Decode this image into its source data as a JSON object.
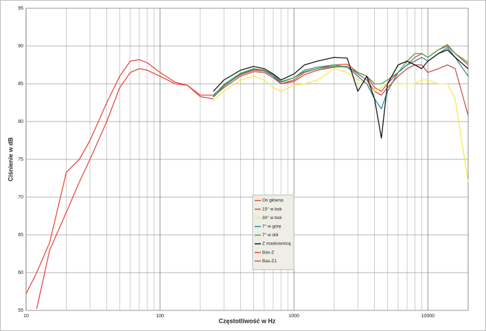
{
  "chart_data": {
    "type": "line",
    "xlabel": "Częstotliwość w Hz",
    "ylabel": "Ciśnienie w dB",
    "xscale": "log",
    "grid": true,
    "xlim": [
      10,
      20000
    ],
    "ylim": [
      55,
      95
    ],
    "xticks": [
      10,
      100,
      1000,
      10000
    ],
    "xminor_ticks": [
      20,
      30,
      40,
      50,
      60,
      70,
      80,
      90,
      200,
      300,
      400,
      500,
      600,
      700,
      800,
      900,
      2000,
      3000,
      4000,
      5000,
      6000,
      7000,
      8000,
      9000
    ],
    "yticks": [
      55,
      60,
      65,
      70,
      75,
      80,
      85,
      90,
      95
    ],
    "x": [
      10,
      12,
      15,
      20,
      25,
      30,
      40,
      50,
      60,
      70,
      80,
      100,
      130,
      160,
      200,
      250,
      300,
      400,
      500,
      600,
      700,
      800,
      1000,
      1200,
      1500,
      2000,
      2500,
      3000,
      3500,
      4000,
      4500,
      5000,
      6000,
      7000,
      8000,
      9000,
      10000,
      12000,
      14000,
      16000,
      20000
    ],
    "series": [
      {
        "name": "Oś główna",
        "color": "#e8453c",
        "values": [
          null,
          null,
          null,
          null,
          null,
          null,
          null,
          null,
          null,
          null,
          null,
          null,
          null,
          null,
          null,
          83.5,
          84.8,
          86.2,
          86.8,
          86.7,
          86,
          85,
          85.5,
          86.5,
          87,
          87.5,
          87.6,
          86.5,
          86,
          84.5,
          84,
          85,
          86.5,
          87.5,
          88.5,
          89,
          88.5,
          89.5,
          90,
          89,
          87.5
        ]
      },
      {
        "name": "15° w bok",
        "color": "#c0504d",
        "values": [
          null,
          null,
          null,
          null,
          null,
          null,
          null,
          null,
          null,
          null,
          null,
          null,
          null,
          null,
          null,
          83.3,
          84.5,
          86,
          86.6,
          86.5,
          85.8,
          85,
          85.3,
          86.2,
          86.8,
          87.2,
          87.3,
          86.3,
          85.5,
          84,
          83.5,
          84.5,
          86,
          87,
          87.5,
          87.5,
          86.5,
          87,
          87.5,
          87,
          80.8
        ]
      },
      {
        "name": "30° w bok",
        "color": "#f5e94a",
        "values": [
          null,
          null,
          null,
          null,
          null,
          null,
          null,
          null,
          null,
          null,
          null,
          null,
          null,
          null,
          null,
          82.8,
          84,
          85.5,
          86,
          85.5,
          84.5,
          84,
          84.8,
          85,
          85.5,
          87,
          86.5,
          85.5,
          85,
          84,
          84.5,
          85,
          85,
          85,
          85,
          85.5,
          85.5,
          85,
          85,
          83,
          72
        ]
      },
      {
        "name": "7° w górę",
        "color": "#31859c",
        "values": [
          null,
          null,
          null,
          null,
          null,
          null,
          null,
          null,
          null,
          null,
          null,
          null,
          null,
          null,
          null,
          83.2,
          84.7,
          86.3,
          86.9,
          86.8,
          86,
          85.2,
          85.8,
          86.8,
          87.2,
          87.5,
          87.2,
          86,
          85,
          83,
          81.7,
          84,
          86.5,
          87.5,
          88,
          88.5,
          88,
          89,
          89.8,
          88.5,
          86
        ]
      },
      {
        "name": "7° w dół",
        "color": "#3aa54a",
        "values": [
          null,
          null,
          null,
          null,
          null,
          null,
          null,
          null,
          null,
          null,
          null,
          null,
          null,
          null,
          null,
          83.4,
          84.9,
          86.4,
          87,
          86.8,
          86.2,
          85.3,
          85.8,
          86.6,
          87,
          87.3,
          87.2,
          86.5,
          86,
          85,
          85,
          85.5,
          86.5,
          88,
          89,
          89,
          88.5,
          89.5,
          90.2,
          89,
          87.8
        ]
      },
      {
        "name": "Z maskownicą",
        "color": "#111111",
        "values": [
          null,
          null,
          null,
          null,
          null,
          null,
          null,
          null,
          null,
          null,
          null,
          null,
          null,
          null,
          null,
          84,
          85.5,
          86.8,
          87.3,
          87,
          86.3,
          85.5,
          86.3,
          87.5,
          88,
          88.5,
          88.4,
          84,
          86,
          83,
          77.8,
          85,
          87.5,
          88,
          87.5,
          87,
          88,
          89,
          89.5,
          88.5,
          87
        ]
      },
      {
        "name": "Bas-Z",
        "color": "#e8453c",
        "values": [
          57.2,
          60,
          64,
          73.3,
          75,
          77.5,
          82.5,
          86,
          88,
          88.2,
          87.8,
          86.5,
          85.2,
          84.8,
          83.5,
          83.5,
          null,
          null,
          null,
          null,
          null,
          null,
          null,
          null,
          null,
          null,
          null,
          null,
          null,
          null,
          null,
          null,
          null,
          null,
          null,
          null,
          null,
          null,
          null,
          null,
          null
        ]
      },
      {
        "name": "Bas-Z1",
        "color": "#e8453c",
        "values": [
          null,
          55.2,
          63,
          68,
          72,
          75,
          80,
          84.5,
          86.5,
          87,
          86.8,
          86,
          85,
          84.8,
          83.3,
          83,
          null,
          null,
          null,
          null,
          null,
          null,
          null,
          null,
          null,
          null,
          null,
          null,
          null,
          null,
          null,
          null,
          null,
          null,
          null,
          null,
          null,
          null,
          null,
          null,
          null
        ]
      }
    ]
  }
}
